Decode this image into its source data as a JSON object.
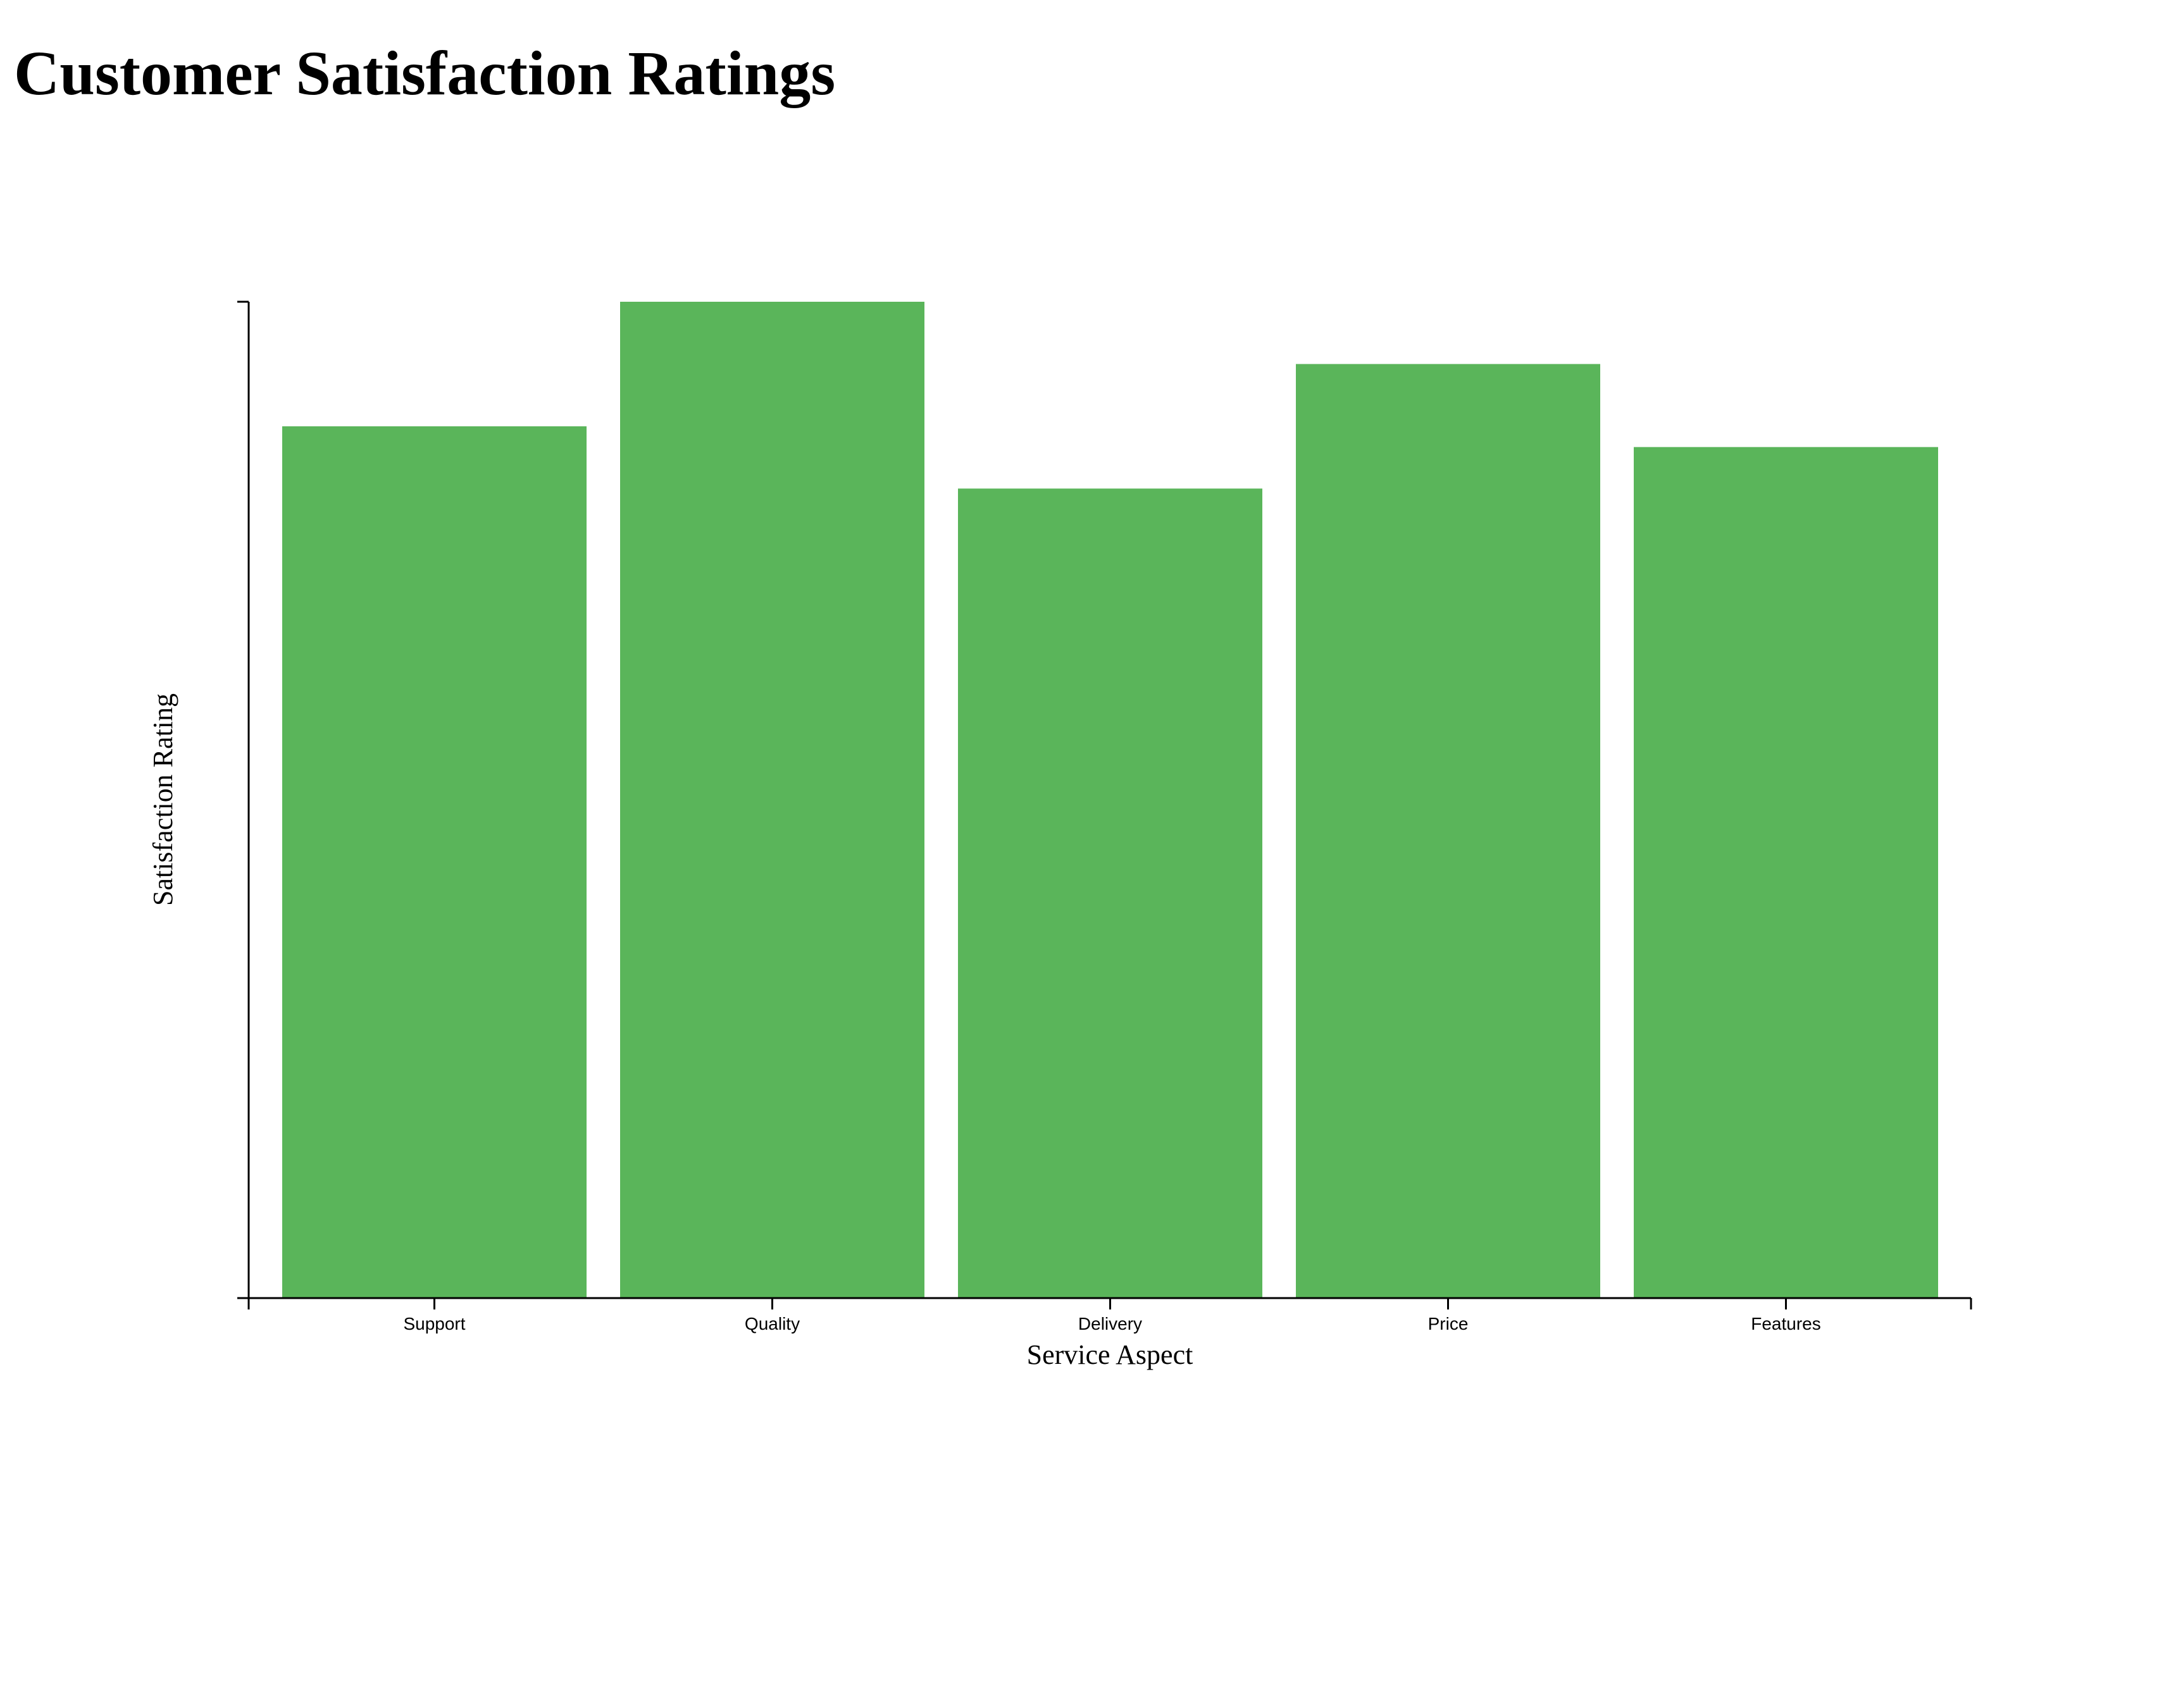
{
  "chart_data": {
    "type": "bar",
    "title": "Customer Satisfaction Ratings",
    "xlabel": "Service Aspect",
    "ylabel": "Satisfaction Rating",
    "categories": [
      "Support",
      "Quality",
      "Delivery",
      "Price",
      "Features"
    ],
    "values": [
      4.2,
      4.8,
      3.9,
      4.5,
      4.1
    ],
    "ylim": [
      0,
      4.8
    ],
    "grid": false,
    "bar_color": "#5ab55a"
  }
}
